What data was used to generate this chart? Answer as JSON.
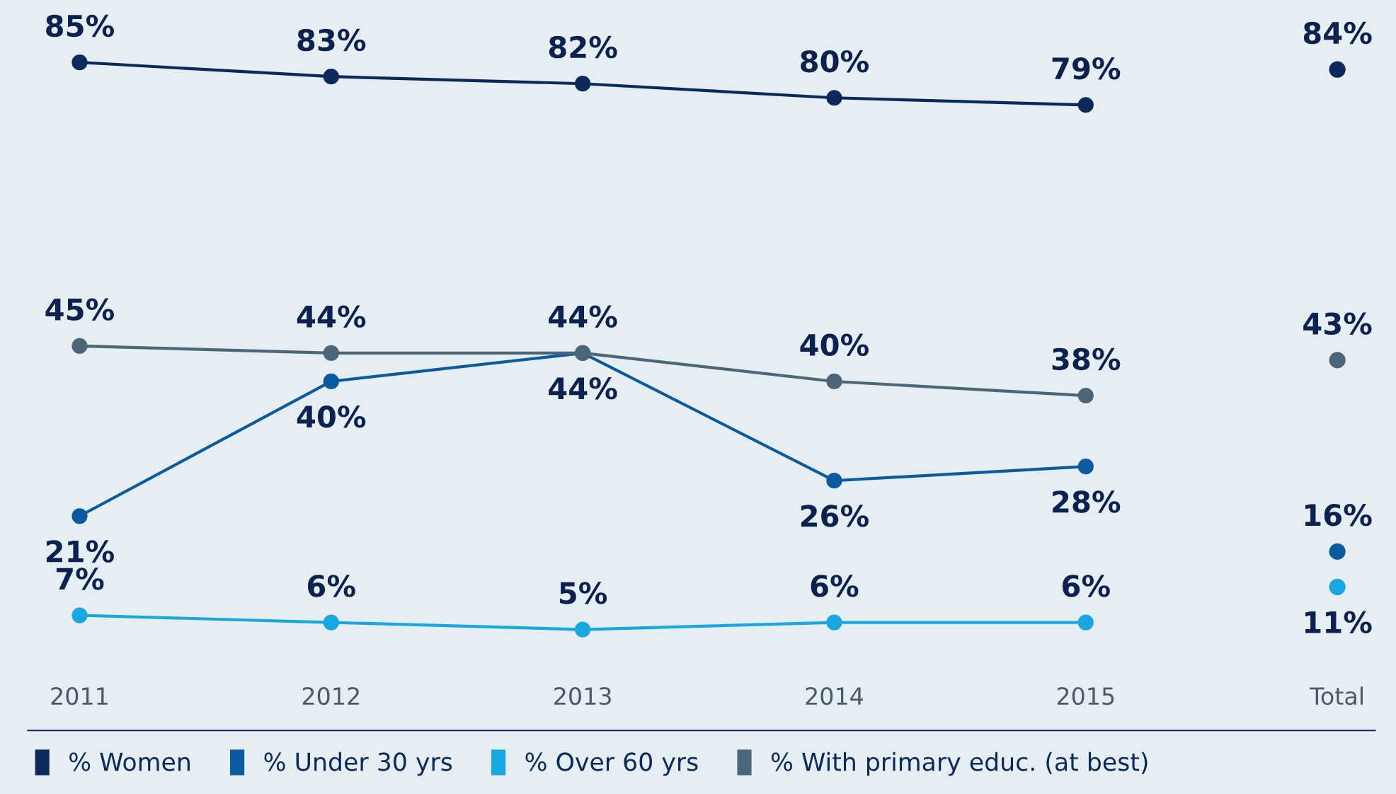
{
  "chart_data": {
    "type": "line",
    "categories": [
      "2011",
      "2012",
      "2013",
      "2014",
      "2015",
      "Total"
    ],
    "series": [
      {
        "name": "% Women",
        "color": "#0b2a5b",
        "values": [
          85,
          83,
          82,
          80,
          79,
          null
        ],
        "value_labels": [
          "85%",
          "83%",
          "82%",
          "80%",
          "79%",
          null
        ]
      },
      {
        "name": "% Under 30 yrs",
        "color": "#0c5a9e",
        "values": [
          21,
          40,
          44,
          26,
          28,
          null
        ],
        "value_labels": [
          "21%",
          "40%",
          "44%",
          "26%",
          "28%",
          null
        ]
      },
      {
        "name": "% Over 60 yrs",
        "color": "#1aa6df",
        "values": [
          7,
          6,
          5,
          6,
          6,
          null
        ],
        "value_labels": [
          "7%",
          "6%",
          "5%",
          "6%",
          "6%",
          null
        ]
      },
      {
        "name": "% With primary educ. (at best)",
        "color": "#4d6578",
        "values": [
          45,
          44,
          44,
          40,
          38,
          null
        ],
        "value_labels": [
          "45%",
          "44%",
          "44%",
          "40%",
          "38%",
          null
        ]
      },
      {
        "type": "scatter",
        "color": "#0b2a5b",
        "values": [
          null,
          null,
          null,
          null,
          null,
          84
        ],
        "value_labels": [
          null,
          null,
          null,
          null,
          null,
          "84%"
        ]
      },
      {
        "type": "scatter",
        "color": "#0c5a9e",
        "values": [
          null,
          null,
          null,
          null,
          null,
          16
        ],
        "value_labels": [
          null,
          null,
          null,
          null,
          null,
          "16%"
        ]
      },
      {
        "type": "scatter",
        "color": "#1aa6df",
        "values": [
          null,
          null,
          null,
          null,
          null,
          11
        ],
        "value_labels": [
          null,
          null,
          null,
          null,
          null,
          "11%"
        ]
      },
      {
        "type": "scatter",
        "color": "#4d6578",
        "values": [
          null,
          null,
          null,
          null,
          null,
          43
        ],
        "value_labels": [
          null,
          null,
          null,
          null,
          null,
          "43%"
        ]
      }
    ],
    "tick_labels": "x",
    "marker": "circle",
    "line_style": "solid",
    "legend": "bottom"
  }
}
